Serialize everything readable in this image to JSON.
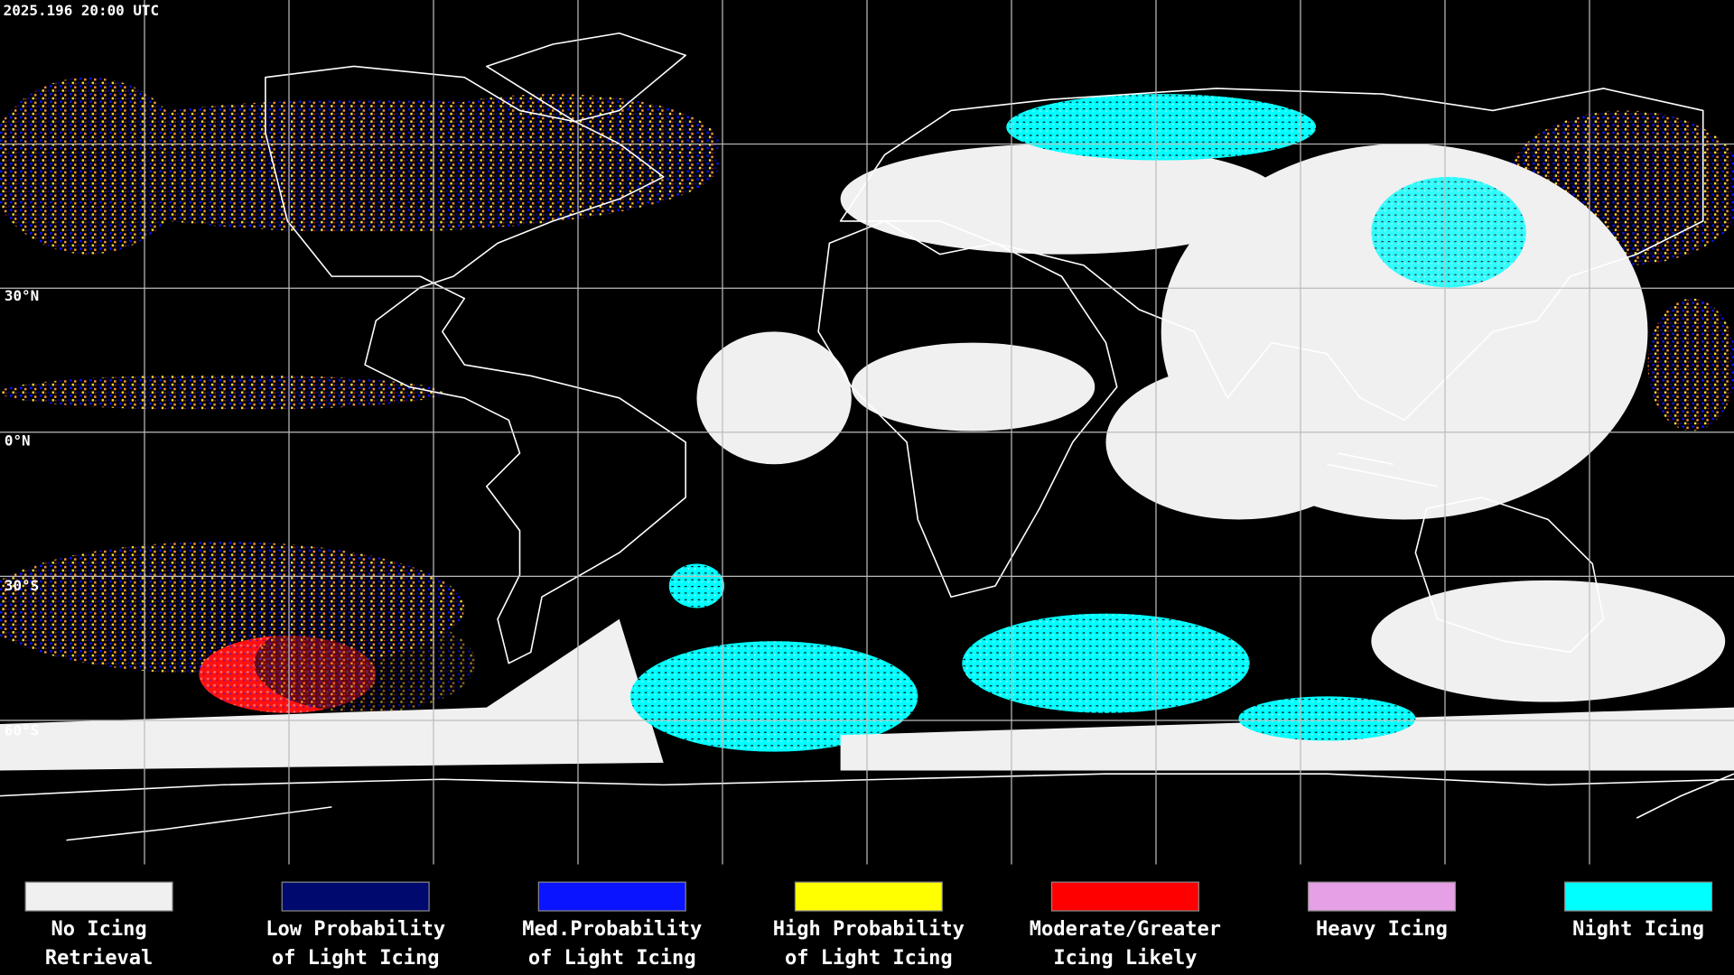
{
  "header": {
    "timestamp": "2025.196 20:00 UTC"
  },
  "map": {
    "latitude_labels": [
      "30°N",
      "0°N",
      "30°S",
      "60°S"
    ]
  },
  "legend": {
    "items": [
      {
        "label": [
          "No Icing",
          "Retrieval"
        ],
        "color": "#f0f0f0"
      },
      {
        "label": [
          "Low Probability",
          "of Light Icing"
        ],
        "color": "#000a6e"
      },
      {
        "label": [
          "Med.Probability",
          "of Light Icing"
        ],
        "color": "#0a14ff"
      },
      {
        "label": [
          "High Probability",
          "of Light Icing"
        ],
        "color": "#ffff00"
      },
      {
        "label": [
          "Moderate/Greater",
          "Icing Likely"
        ],
        "color": "#ff0000"
      },
      {
        "label": [
          "Heavy Icing"
        ],
        "color": "#e6a0e6"
      },
      {
        "label": [
          "Night Icing"
        ],
        "color": "#00ffff"
      }
    ]
  }
}
